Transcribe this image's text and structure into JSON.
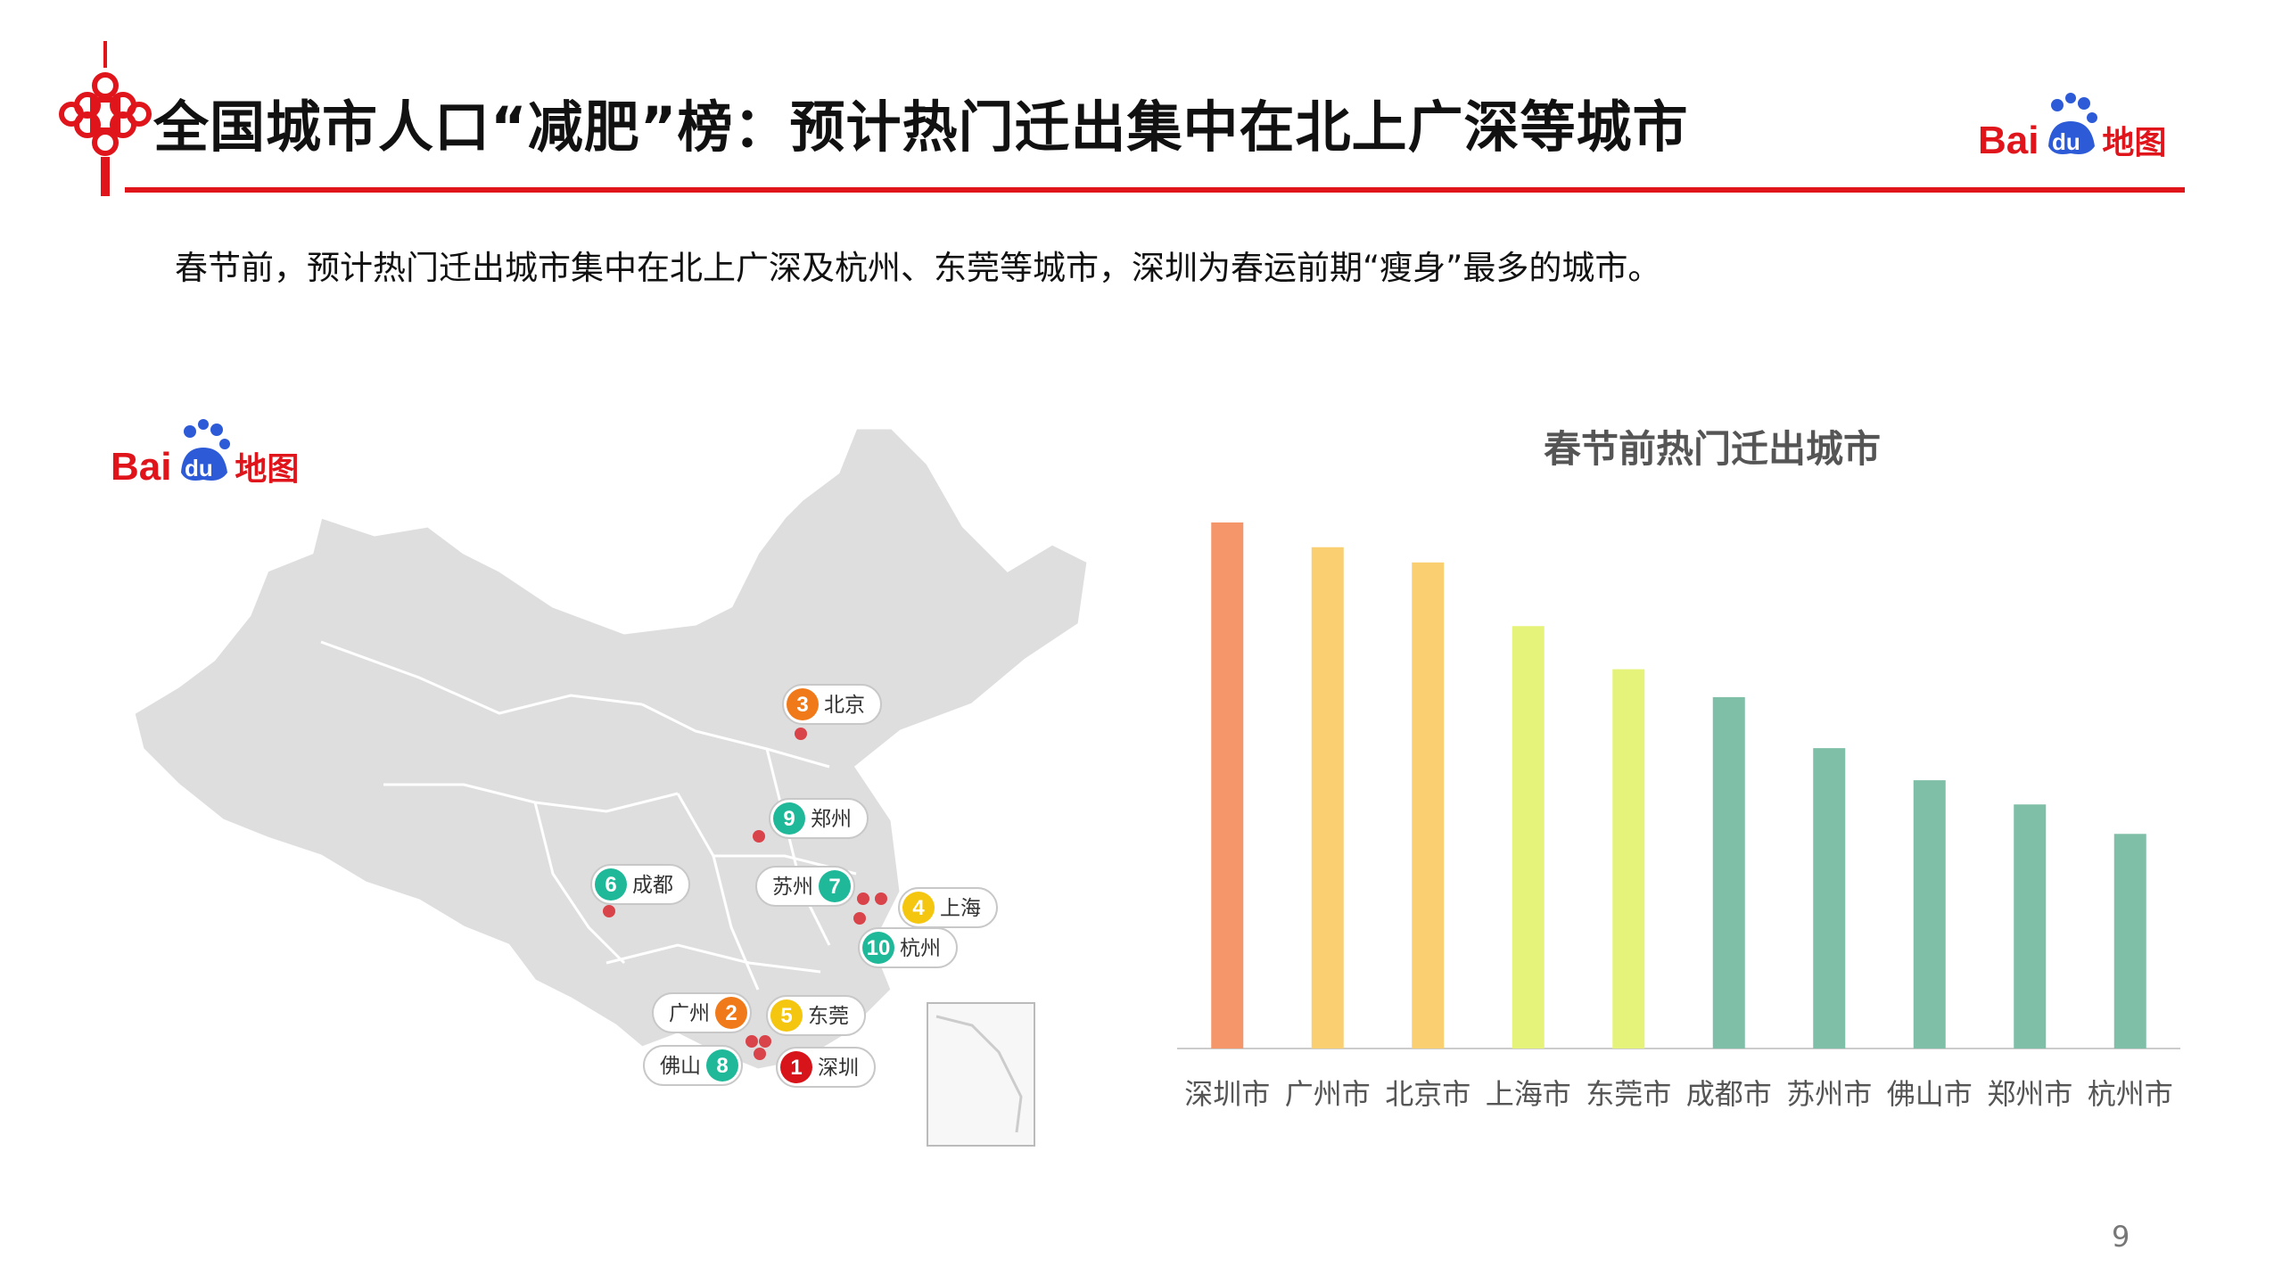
{
  "header": {
    "title": "全国城市人口“减肥”榜：预计热门迁出集中在北上广深等城市",
    "logo_bai": "Bai",
    "logo_du": "du",
    "logo_ditu": "地图"
  },
  "subtitle": "春节前，预计热门迁出城市集中在北上广深及杭州、东莞等城市，深圳为春运前期“瘦身”最多的城市。",
  "map": {
    "logo_bai": "Bai",
    "logo_du": "du",
    "logo_ditu": "地图",
    "pins": [
      {
        "rank": "3",
        "city": "北京",
        "color": "#f07a1a"
      },
      {
        "rank": "9",
        "city": "郑州",
        "color": "#1fb99a"
      },
      {
        "rank": "6",
        "city": "成都",
        "color": "#1fb99a"
      },
      {
        "rank": "7",
        "city": "苏州",
        "color": "#1fb99a"
      },
      {
        "rank": "4",
        "city": "上海",
        "color": "#f4c60f"
      },
      {
        "rank": "10",
        "city": "杭州",
        "color": "#1fb99a"
      },
      {
        "rank": "2",
        "city": "广州",
        "color": "#f07a1a"
      },
      {
        "rank": "5",
        "city": "东莞",
        "color": "#f4c60f"
      },
      {
        "rank": "8",
        "city": "佛山",
        "color": "#1fb99a"
      },
      {
        "rank": "1",
        "city": "深圳",
        "color": "#d7141a"
      }
    ]
  },
  "chart_data": {
    "type": "bar",
    "title": "春节前热门迁出城市",
    "categories": [
      "深圳市",
      "广州市",
      "北京市",
      "上海市",
      "东莞市",
      "成都市",
      "苏州市",
      "佛山市",
      "郑州市",
      "杭州市"
    ],
    "values": [
      100,
      95.3,
      92.4,
      80.3,
      72.1,
      66.8,
      57.1,
      51.0,
      46.4,
      40.8
    ],
    "colors": [
      "#f4956a",
      "#f9cf72",
      "#f9cf72",
      "#e6f37a",
      "#e6f37a",
      "#7fbfa8",
      "#7fbfa8",
      "#7fbfa8",
      "#7fbfa8",
      "#7fbfa8"
    ],
    "ylim": [
      0,
      100
    ],
    "grid": false
  },
  "footer": {
    "page_number": "9"
  }
}
